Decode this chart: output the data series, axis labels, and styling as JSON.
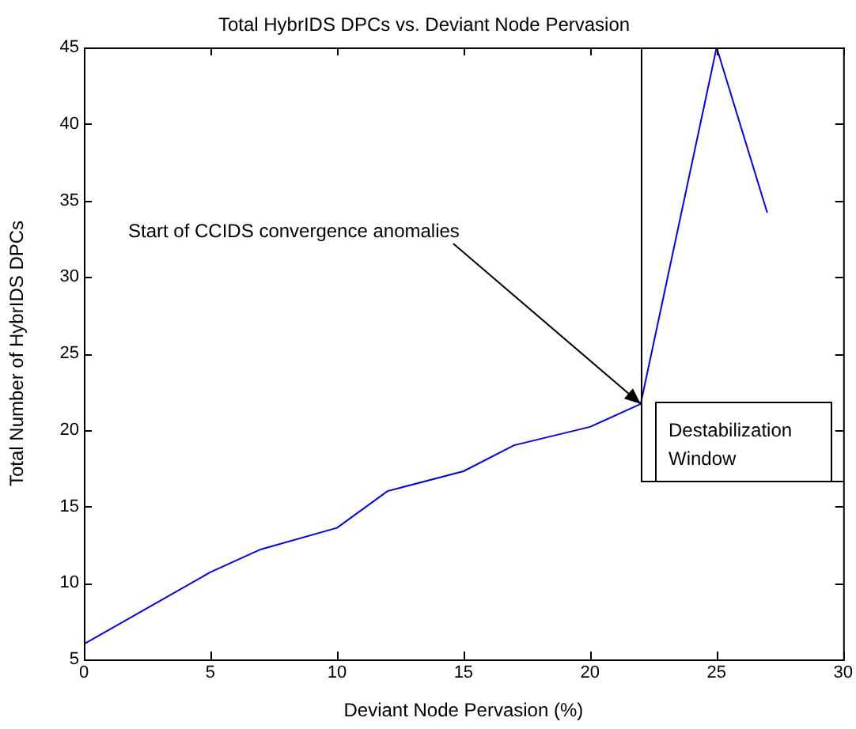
{
  "chart_data": {
    "type": "line",
    "title": "Total HybrIDS DPCs vs. Deviant Node Pervasion",
    "xlabel": "Deviant Node Pervasion (%)",
    "ylabel": "Total Number of HybrIDS DPCs",
    "x": [
      0,
      5,
      7,
      10,
      12,
      15,
      17,
      20,
      22,
      25,
      27
    ],
    "series": [
      {
        "color": "#0000ff",
        "values": [
          6,
          10.7,
          12.2,
          13.6,
          16,
          17.3,
          19,
          20.2,
          21.7,
          45,
          34.2
        ]
      }
    ],
    "xlim": [
      0,
      30
    ],
    "xticks": [
      0,
      5,
      10,
      15,
      20,
      25,
      30
    ],
    "ylim": [
      5,
      45
    ],
    "yticks": [
      5,
      10,
      15,
      20,
      25,
      30,
      35,
      40,
      45
    ],
    "grid": false,
    "legend": false,
    "marker": "none",
    "line_style": "solid",
    "ref_lines": [
      {
        "axis": "x",
        "value": 22,
        "label": "Destabilization Window",
        "color": "#000000"
      }
    ],
    "annotations": [
      {
        "text": "Start of CCIDS convergence anomalies",
        "x": 22,
        "y": 21.7
      }
    ]
  }
}
